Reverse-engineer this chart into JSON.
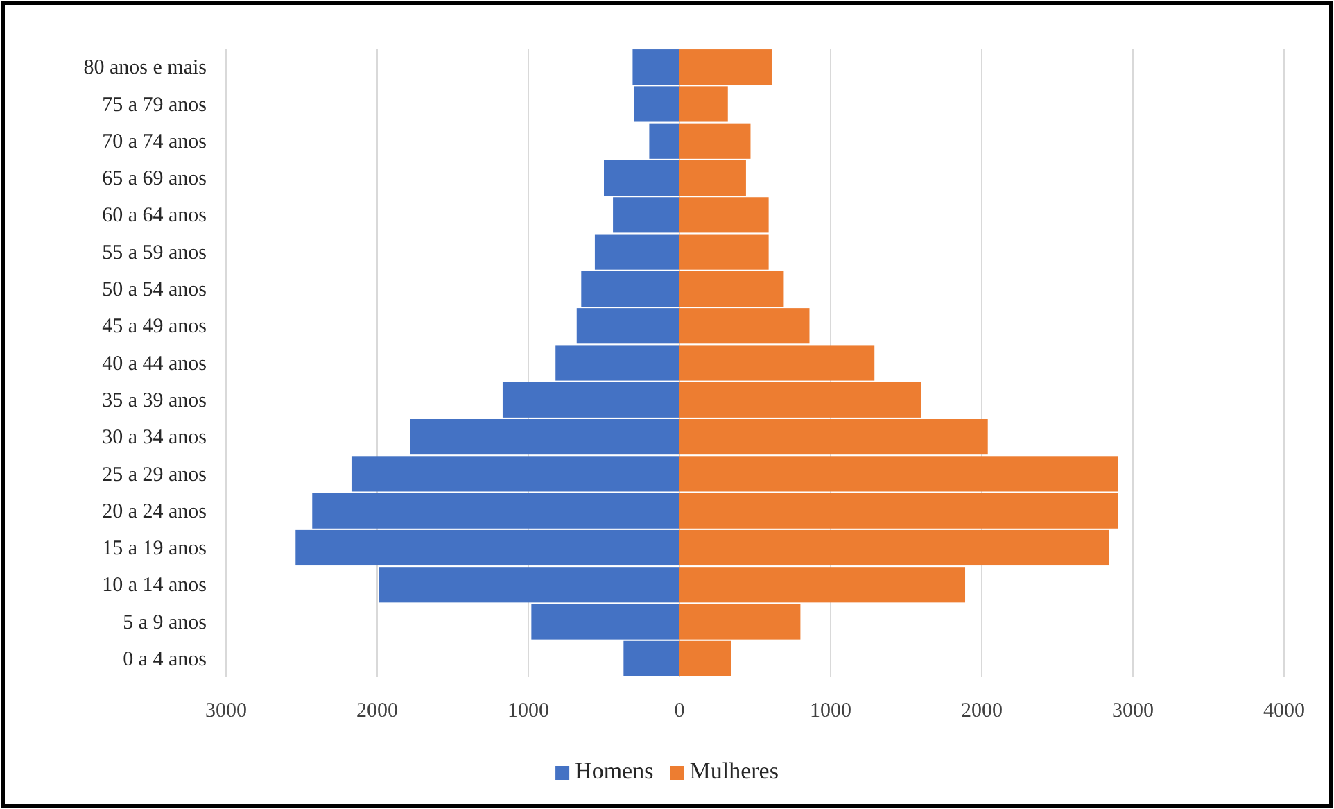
{
  "chart_data": {
    "type": "bar",
    "orientation": "horizontal",
    "stacked": true,
    "categories": [
      "80 anos e mais",
      "75 a 79 anos",
      "70 a 74 anos",
      "65 a 69 anos",
      "60 a 64 anos",
      "55 a 59 anos",
      "50 a 54 anos",
      "45 a 49 anos",
      "40 a 44 anos",
      "35 a 39 anos",
      "30 a 34 anos",
      "25 a 29 anos",
      "20 a 24 anos",
      "15 a 19 anos",
      "10 a 14 anos",
      "5 a 9 anos",
      "0 a 4 anos"
    ],
    "series": [
      {
        "name": "Homens",
        "color": "#4472c4",
        "values": [
          -310,
          -300,
          -200,
          -500,
          -440,
          -560,
          -650,
          -680,
          -820,
          -1170,
          -1780,
          -2170,
          -2430,
          -2540,
          -1990,
          -980,
          -370
        ]
      },
      {
        "name": "Mulheres",
        "color": "#ed7d31",
        "values": [
          610,
          320,
          470,
          440,
          590,
          590,
          690,
          860,
          1290,
          1600,
          2040,
          2900,
          2900,
          2840,
          1890,
          800,
          340
        ]
      }
    ],
    "xlim": [
      -3000,
      4000
    ],
    "xticks": [
      {
        "value": -3000,
        "label": "3000"
      },
      {
        "value": -2000,
        "label": "2000"
      },
      {
        "value": -1000,
        "label": "1000"
      },
      0,
      1000,
      2000,
      3000,
      4000
    ],
    "grid": "x",
    "legend": "bottom"
  }
}
